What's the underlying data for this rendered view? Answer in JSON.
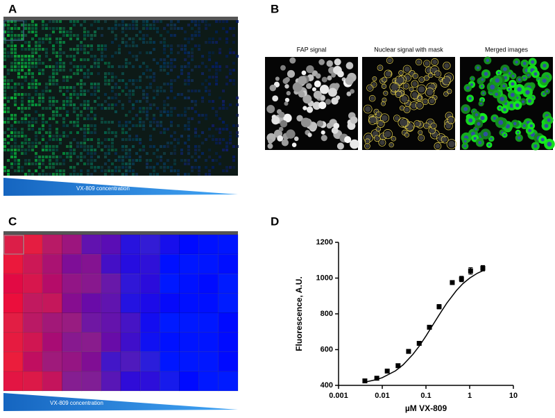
{
  "panels": {
    "a": {
      "label": "A",
      "gradient_label": "VX-809 concentration"
    },
    "b": {
      "label": "B",
      "titles": [
        "FAP signal",
        "Nuclear signal with mask",
        "Merged images"
      ]
    },
    "c": {
      "label": "C",
      "gradient_label": "VX-809 concentration"
    },
    "d": {
      "label": "D"
    }
  },
  "chart_data": {
    "type": "scatter",
    "x_label": "µM VX-809",
    "y_label": "Fluorescence, A.U.",
    "log_x": true,
    "x": [
      0.004,
      0.0075,
      0.013,
      0.023,
      0.04,
      0.07,
      0.12,
      0.2,
      0.4,
      0.65,
      1.05,
      2.0
    ],
    "series": [
      {
        "color": "#000000",
        "values": [
          425,
          440,
          480,
          510,
          590,
          635,
          725,
          840,
          975,
          995,
          1040,
          1055
        ],
        "errors": [
          5,
          5,
          6,
          6,
          8,
          10,
          10,
          12,
          10,
          15,
          18,
          15
        ]
      }
    ],
    "fit": {
      "color": "#000000",
      "x": [
        0.004,
        0.007,
        0.01,
        0.02,
        0.03,
        0.05,
        0.07,
        0.1,
        0.15,
        0.2,
        0.3,
        0.5,
        0.7,
        1,
        1.5,
        2.2
      ],
      "values": [
        418,
        431,
        443,
        481,
        515,
        573,
        619,
        676,
        745,
        794,
        860,
        931,
        969,
        1000,
        1027,
        1046
      ]
    },
    "xlim": [
      0.001,
      10
    ],
    "xticks": [
      0.001,
      0.01,
      0.1,
      1,
      10
    ],
    "ylim": [
      400,
      1200
    ],
    "yticks": [
      400,
      600,
      800,
      1000,
      1200
    ]
  }
}
